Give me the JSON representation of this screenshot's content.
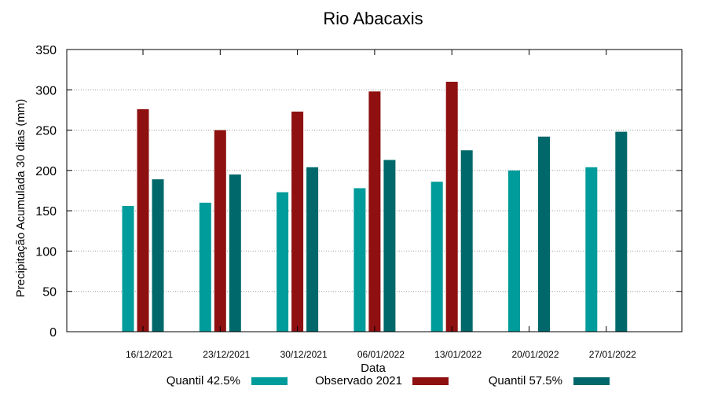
{
  "chart_data": {
    "type": "bar",
    "title": "Rio Abacaxis",
    "xlabel": "Data",
    "ylabel": "Precipitação Acumulada 30 dias (mm)",
    "ylim": [
      0,
      350
    ],
    "yticks": [
      0,
      50,
      100,
      150,
      200,
      250,
      300,
      350
    ],
    "grid": true,
    "legend_position": "bottom",
    "categories": [
      "16/12/2021",
      "23/12/2021",
      "30/12/2021",
      "06/01/2022",
      "13/01/2022",
      "20/01/2022",
      "27/01/2022"
    ],
    "series": [
      {
        "name": "Quantil 42.5%",
        "color": "#009b9b",
        "values": [
          156,
          160,
          173,
          178,
          186,
          200,
          204
        ]
      },
      {
        "name": "Observado 2021",
        "color": "#8e1010",
        "values": [
          276,
          250,
          273,
          298,
          310,
          null,
          null
        ]
      },
      {
        "name": "Quantil 57.5%",
        "color": "#00686a",
        "values": [
          189,
          195,
          204,
          213,
          225,
          242,
          248
        ]
      }
    ]
  }
}
